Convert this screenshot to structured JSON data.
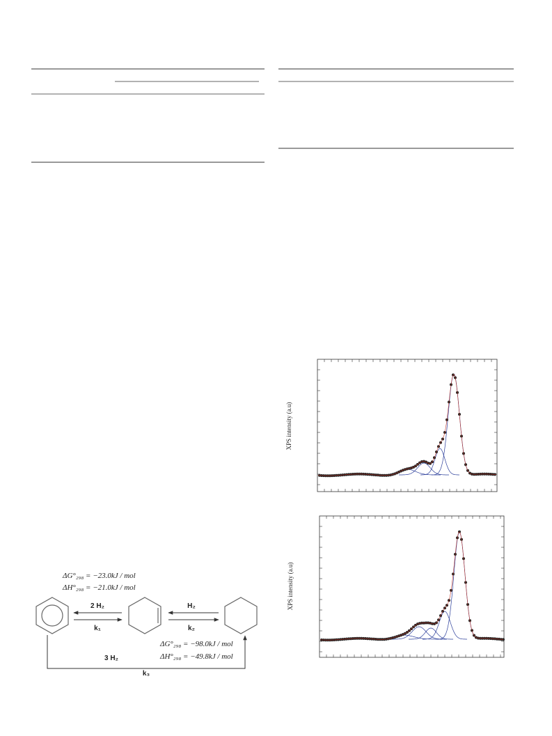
{
  "figures": [
    {
      "y_label": "XPS intensity (a.u)"
    },
    {
      "y_label": "XPS intensity (a.u)"
    }
  ],
  "scheme": {
    "top_equations": [
      "ΔG°₂₉₈ = −23.0kJ / mol",
      "ΔH°₂₉₈ = −21.0kJ / mol"
    ],
    "bottom_equations": [
      "ΔG°₂₉₈ = −98.0kJ / mol",
      "ΔH°₂₉₈ = −49.8kJ / mol"
    ],
    "step1_reagent": "2 H₂",
    "step1_rate": "k₁",
    "step2_reagent": "H₂",
    "step2_rate": "k₂",
    "step3_reagent": "3 H₂",
    "step3_rate": "k₃"
  }
}
